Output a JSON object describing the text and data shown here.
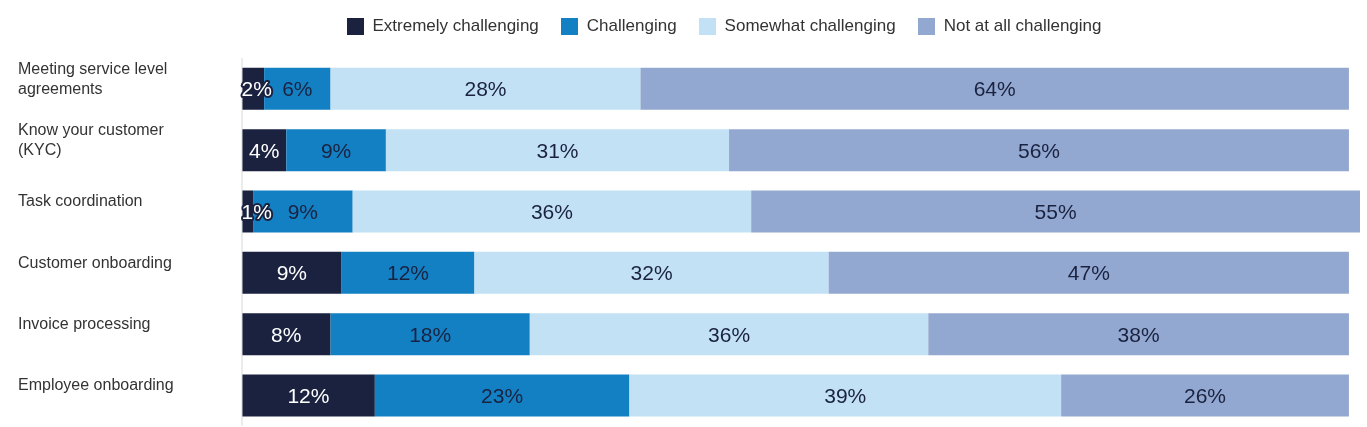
{
  "chart_data": {
    "type": "bar",
    "orientation": "horizontal",
    "stacked": true,
    "legend": "top",
    "tick_labels": "y",
    "categories": [
      "Meeting service level agreements",
      "Know your customer (KYC)",
      "Task coordination",
      "Customer onboarding",
      "Invoice processing",
      "Employee onboarding"
    ],
    "series": [
      {
        "name": "Extremely challenging",
        "color": "#1a2240",
        "values": [
          2,
          4,
          1,
          9,
          8,
          12
        ],
        "value_labels": [
          "2%",
          "4%",
          "1%",
          "9%",
          "8%",
          "12%"
        ]
      },
      {
        "name": "Challenging",
        "color": "#1380c4",
        "values": [
          6,
          9,
          9,
          12,
          18,
          23
        ],
        "value_labels": [
          "6%",
          "9%",
          "9%",
          "12%",
          "18%",
          "23%"
        ]
      },
      {
        "name": "Somewhat challenging",
        "color": "#c2e1f4",
        "values": [
          28,
          31,
          36,
          32,
          36,
          39
        ],
        "value_labels": [
          "28%",
          "31%",
          "36%",
          "32%",
          "36%",
          "39%"
        ]
      },
      {
        "name": "Not at all challenging",
        "color": "#93a8d1",
        "values": [
          64,
          56,
          55,
          47,
          38,
          26
        ],
        "value_labels": [
          "64%",
          "56%",
          "55%",
          "47%",
          "38%",
          "26%"
        ]
      }
    ]
  }
}
